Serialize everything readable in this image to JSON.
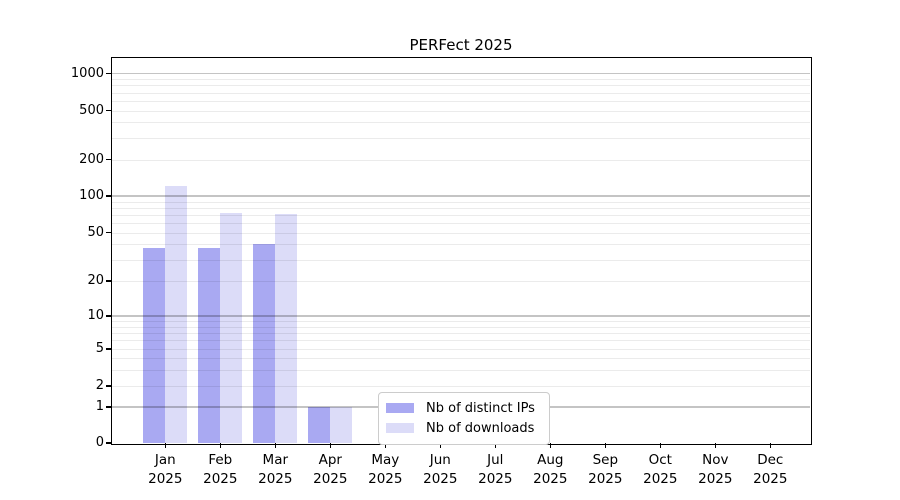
{
  "title": "PERFect 2025",
  "chart_data": {
    "type": "bar",
    "title": "PERFect 2025",
    "categories": [
      "Jan",
      "Feb",
      "Mar",
      "Apr",
      "May",
      "Jun",
      "Jul",
      "Aug",
      "Sep",
      "Oct",
      "Nov",
      "Dec"
    ],
    "category_year": "2025",
    "series": [
      {
        "name": "Nb of distinct IPs",
        "color": "#a9a9f2",
        "values": [
          37,
          37,
          40,
          1,
          0,
          0,
          0,
          0,
          0,
          0,
          0,
          0
        ]
      },
      {
        "name": "Nb of downloads",
        "color": "#dcdcf8",
        "values": [
          122,
          73,
          71,
          1,
          0,
          0,
          0,
          0,
          0,
          0,
          0,
          0
        ]
      }
    ],
    "y_ticks": [
      0,
      1,
      2,
      5,
      10,
      20,
      50,
      100,
      200,
      500,
      1000
    ],
    "ylim": [
      0,
      1000
    ],
    "y_scale": "log-like",
    "grid": "horizontal, drawn over bars; darker lines at powers of 10",
    "legend_position": "bottom-center-inside",
    "colors": {
      "axis": "#000000",
      "background": "#ffffff",
      "legend_border": "#cccccc"
    }
  }
}
